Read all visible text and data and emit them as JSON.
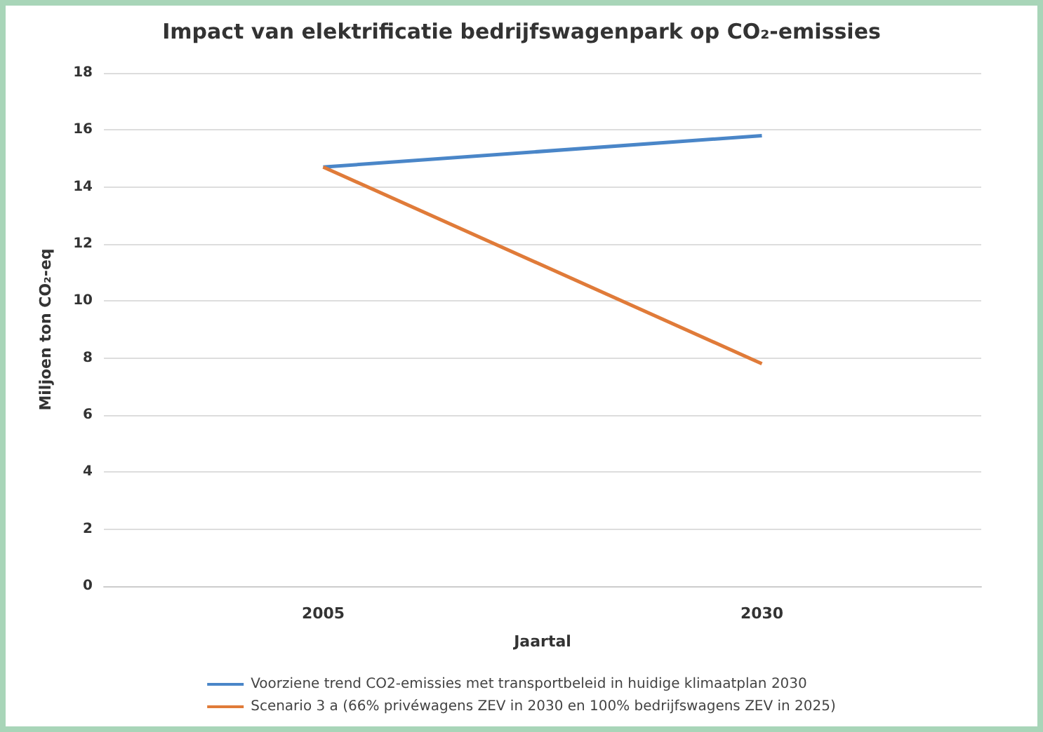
{
  "chart_data": {
    "type": "line",
    "title": "Impact van elektrificatie bedrijfswagenpark op CO₂-emissies",
    "xlabel": "Jaartal",
    "ylabel": "Miljoen ton CO₂-eq",
    "categories": [
      "2005",
      "2030"
    ],
    "series": [
      {
        "name": "Voorziene trend CO2-emissies met transportbeleid in huidige klimaatplan 2030",
        "color": "#4a86c8",
        "values": [
          14.7,
          15.8
        ]
      },
      {
        "name": "Scenario 3 a (66% privéwagens ZEV in 2030 en 100% bedrijfswagens ZEV in 2025)",
        "color": "#e07b39",
        "values": [
          14.7,
          7.8
        ]
      }
    ],
    "ylim": [
      0,
      18
    ],
    "yticks": [
      0,
      2,
      4,
      6,
      8,
      10,
      12,
      14,
      16,
      18
    ],
    "grid": "y",
    "legend": "bottom",
    "marker": "none",
    "line_style": "solid"
  }
}
